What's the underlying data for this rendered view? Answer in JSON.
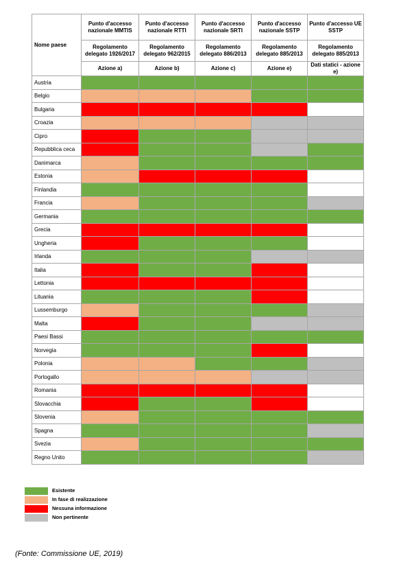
{
  "table": {
    "first_header": "Nome paese",
    "columns": [
      {
        "h1": "Punto d'accesso nazionale MMTIS",
        "h2": "Regolamento delegato 1926/2017",
        "h3": "Azione a)"
      },
      {
        "h1": "Punto d'accesso nazionale RTTI",
        "h2": "Regolamento delegato 962/2015",
        "h3": "Azione b)"
      },
      {
        "h1": "Punto d'accesso nazionale SRTI",
        "h2": "Regolamento delegato 886/2013",
        "h3": "Azione c)"
      },
      {
        "h1": "Punto d'accesso nazionale SSTP",
        "h2": "Regolamento delegato 885/2013",
        "h3": "Azione e)"
      },
      {
        "h1": "Punto d'accesso UE SSTP",
        "h2": "Regolamento delegato 885/2013",
        "h3": "Dati statici - azione e)"
      }
    ],
    "rows": [
      {
        "country": "Austria",
        "status": [
          "existing",
          "existing",
          "existing",
          "existing",
          "existing"
        ]
      },
      {
        "country": "Belgio",
        "status": [
          "in_progress",
          "in_progress",
          "in_progress",
          "existing",
          "existing"
        ]
      },
      {
        "country": "Bulgaria",
        "status": [
          "no_info",
          "no_info",
          "no_info",
          "no_info",
          "blank"
        ]
      },
      {
        "country": "Croazia",
        "status": [
          "in_progress",
          "in_progress",
          "in_progress",
          "not_relevant",
          "not_relevant"
        ]
      },
      {
        "country": "Cipro",
        "status": [
          "no_info",
          "existing",
          "existing",
          "not_relevant",
          "not_relevant"
        ]
      },
      {
        "country": "Repubblica ceca",
        "status": [
          "no_info",
          "existing",
          "existing",
          "not_relevant",
          "existing"
        ]
      },
      {
        "country": "Danimarca",
        "status": [
          "in_progress",
          "existing",
          "existing",
          "existing",
          "existing"
        ]
      },
      {
        "country": "Estonia",
        "status": [
          "in_progress",
          "no_info",
          "no_info",
          "no_info",
          "blank"
        ]
      },
      {
        "country": "Finlandia",
        "status": [
          "existing",
          "existing",
          "existing",
          "existing",
          "blank"
        ]
      },
      {
        "country": "Francia",
        "status": [
          "in_progress",
          "existing",
          "existing",
          "existing",
          "not_relevant"
        ]
      },
      {
        "country": "Germania",
        "status": [
          "existing",
          "existing",
          "existing",
          "existing",
          "existing"
        ]
      },
      {
        "country": "Grecia",
        "status": [
          "no_info",
          "no_info",
          "no_info",
          "no_info",
          "blank"
        ]
      },
      {
        "country": "Ungheria",
        "status": [
          "no_info",
          "existing",
          "existing",
          "existing",
          "blank"
        ]
      },
      {
        "country": "Irlanda",
        "status": [
          "existing",
          "existing",
          "existing",
          "not_relevant",
          "not_relevant"
        ]
      },
      {
        "country": "Italia",
        "status": [
          "no_info",
          "existing",
          "existing",
          "no_info",
          "blank"
        ]
      },
      {
        "country": "Lettonia",
        "status": [
          "no_info",
          "no_info",
          "no_info",
          "no_info",
          "blank"
        ]
      },
      {
        "country": "Lituania",
        "status": [
          "existing",
          "existing",
          "existing",
          "no_info",
          "blank"
        ]
      },
      {
        "country": "Lussemburgo",
        "status": [
          "in_progress",
          "existing",
          "existing",
          "existing",
          "not_relevant"
        ]
      },
      {
        "country": "Malta",
        "status": [
          "no_info",
          "existing",
          "existing",
          "not_relevant",
          "not_relevant"
        ]
      },
      {
        "country": "Paesi Bassi",
        "status": [
          "existing",
          "existing",
          "existing",
          "existing",
          "existing"
        ]
      },
      {
        "country": "Norvegia",
        "status": [
          "existing",
          "existing",
          "existing",
          "no_info",
          "blank"
        ]
      },
      {
        "country": "Polonia",
        "status": [
          "in_progress",
          "in_progress",
          "existing",
          "existing",
          "not_relevant"
        ]
      },
      {
        "country": "Portogallo",
        "status": [
          "in_progress",
          "in_progress",
          "in_progress",
          "not_relevant",
          "not_relevant"
        ]
      },
      {
        "country": "Romania",
        "status": [
          "no_info",
          "no_info",
          "no_info",
          "no_info",
          "blank"
        ]
      },
      {
        "country": "Slovacchia",
        "status": [
          "no_info",
          "existing",
          "existing",
          "no_info",
          "blank"
        ]
      },
      {
        "country": "Slovenia",
        "status": [
          "in_progress",
          "existing",
          "existing",
          "existing",
          "existing"
        ]
      },
      {
        "country": "Spagna",
        "status": [
          "existing",
          "existing",
          "existing",
          "existing",
          "not_relevant"
        ]
      },
      {
        "country": "Svezia",
        "status": [
          "in_progress",
          "existing",
          "existing",
          "existing",
          "existing"
        ]
      },
      {
        "country": "Regno Unito",
        "status": [
          "existing",
          "existing",
          "existing",
          "existing",
          "not_relevant"
        ]
      }
    ]
  },
  "status_colors": {
    "existing": "#70ad47",
    "in_progress": "#f4b183",
    "no_info": "#ff0000",
    "not_relevant": "#bfbfbf",
    "blank": "#ffffff"
  },
  "legend": [
    {
      "status": "existing",
      "label": "Esistente"
    },
    {
      "status": "in_progress",
      "label": "In fase di realizzazione"
    },
    {
      "status": "no_info",
      "label": "Nessuna informazione"
    },
    {
      "status": "not_relevant",
      "label": "Non pertinente"
    }
  ],
  "source": "(Fonte: Commissione UE, 2019)"
}
